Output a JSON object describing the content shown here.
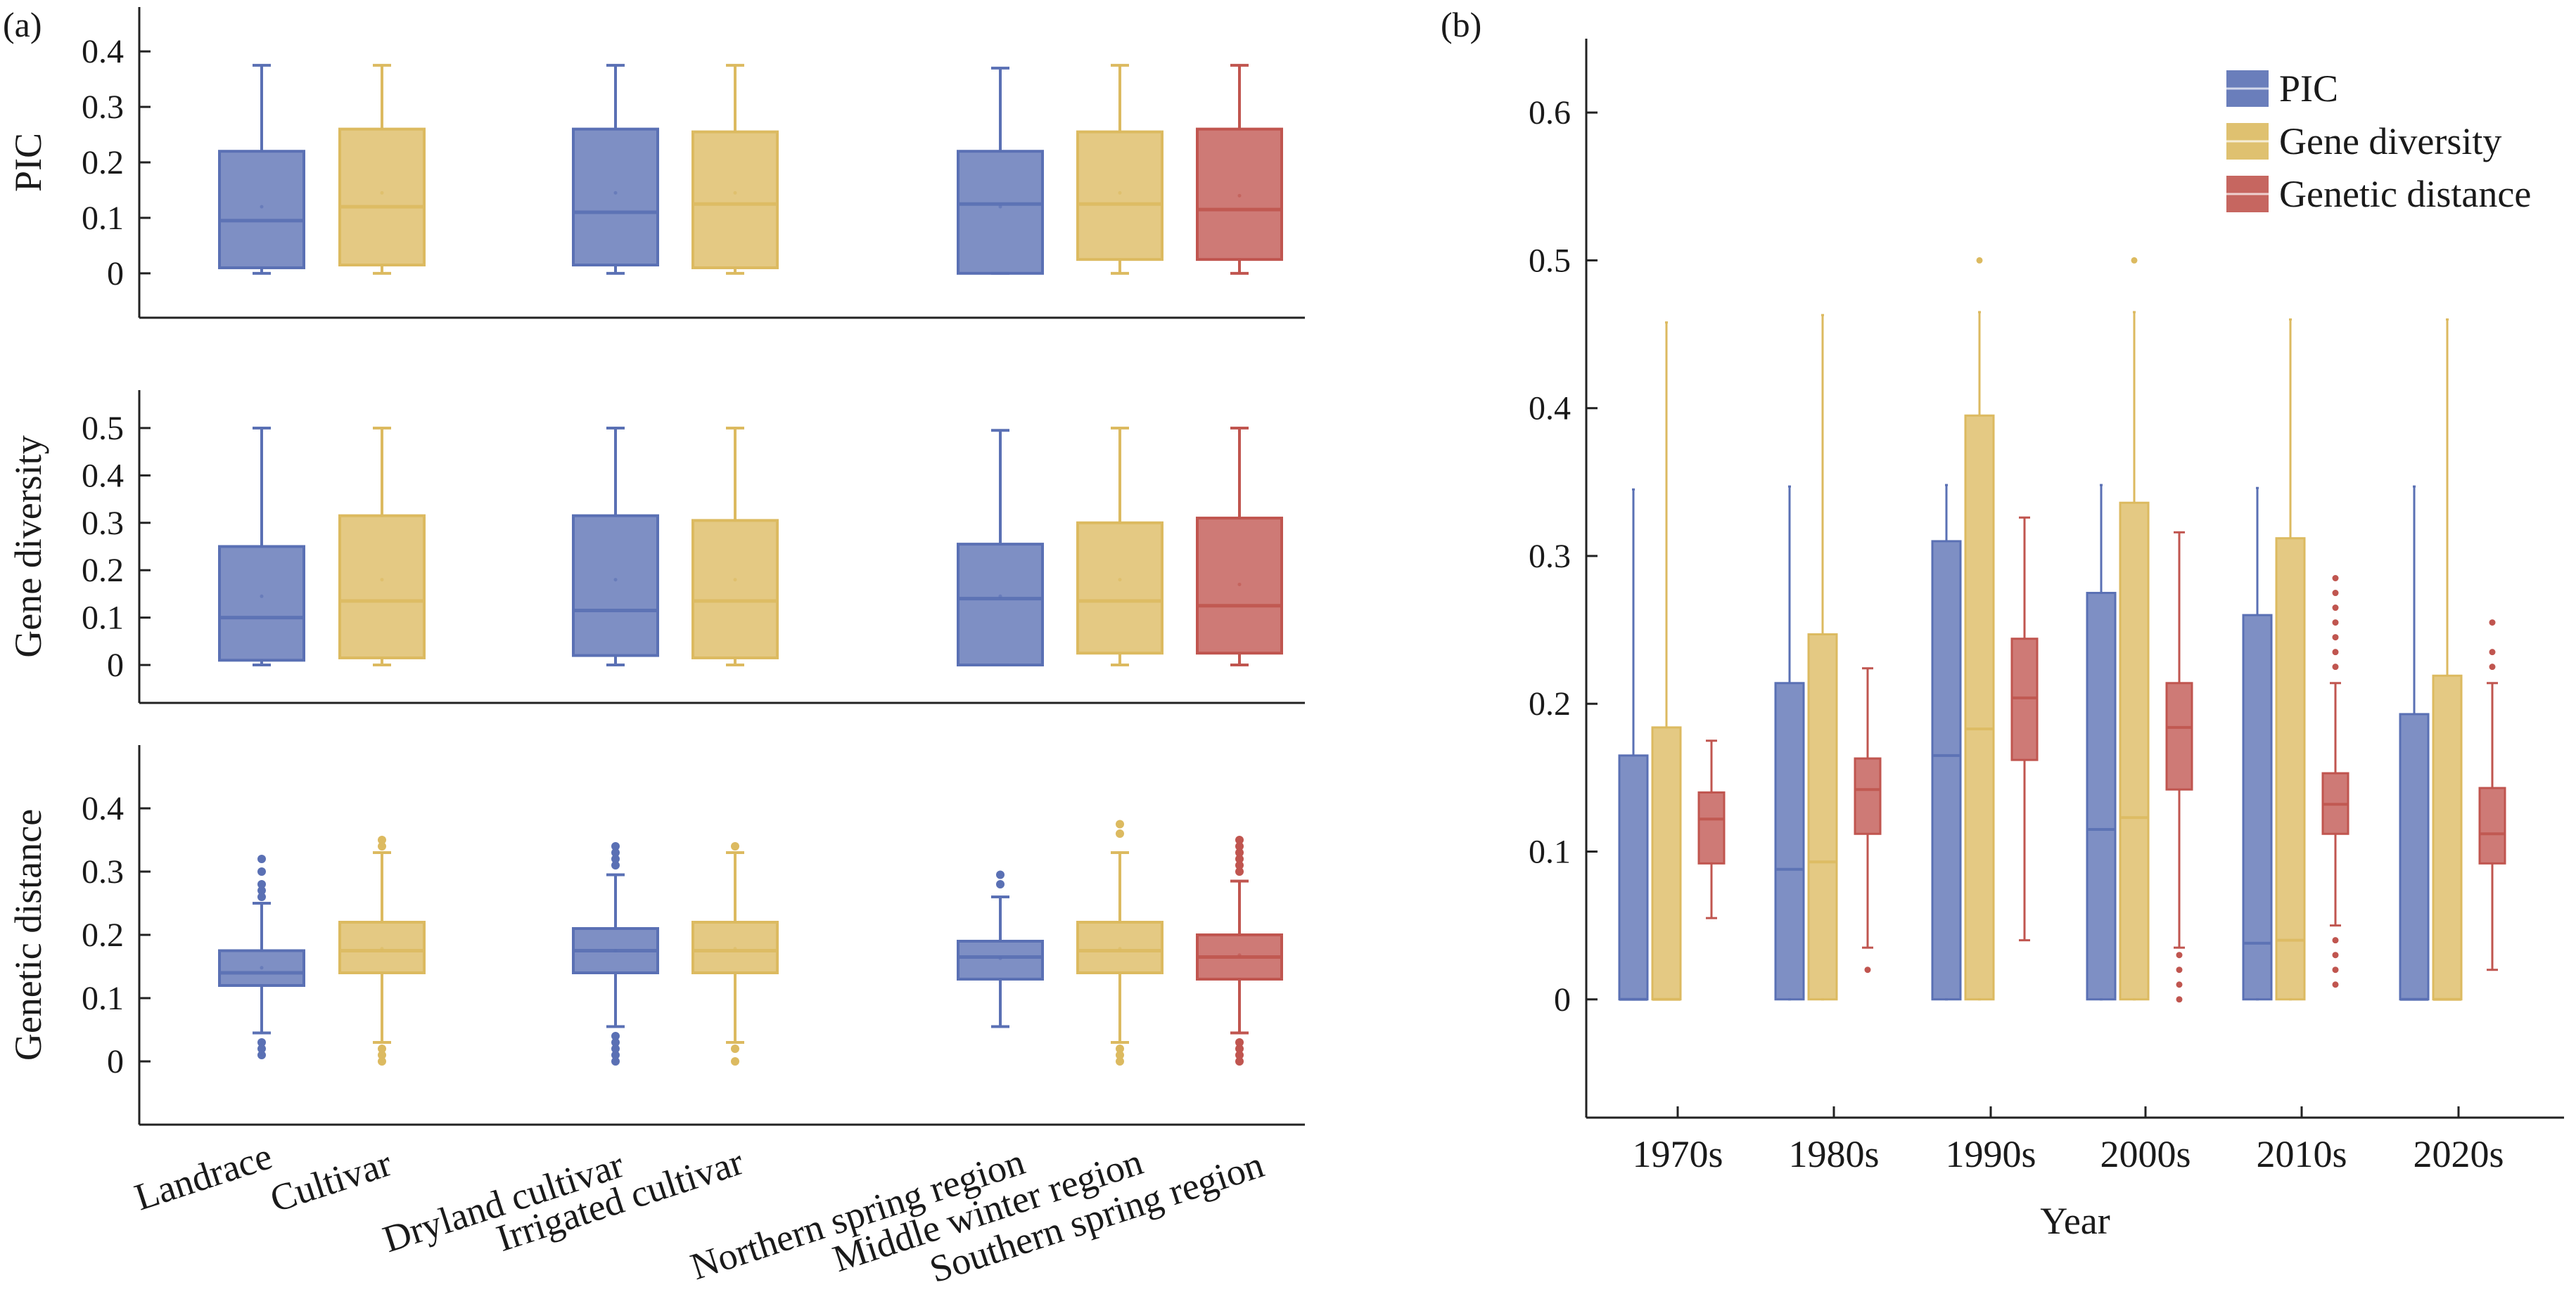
{
  "colors": {
    "PIC": "#5a70b4",
    "Gene diversity": "#dcba60",
    "Genetic distance": "#c0554f"
  },
  "chart_data": [
    {
      "type": "box",
      "panel_label": "(a)",
      "ylabel": "PIC",
      "ylim": [
        -0.08,
        0.48
      ],
      "yticks": [
        0,
        0.1,
        0.2,
        0.3,
        0.4
      ],
      "ytick_labels": [
        "0",
        "0.1",
        "0.2",
        "0.3",
        "0.4"
      ],
      "categories": [
        "Landrace",
        "Cultivar",
        "Dryland cultivar",
        "Irrigated cultivar",
        "Northern spring region",
        "Middle winter region",
        "Southern spring region"
      ],
      "boxes": [
        {
          "category": "Landrace",
          "series": "PIC",
          "whislo": 0.0,
          "q1": 0.01,
          "med": 0.095,
          "q3": 0.22,
          "whishi": 0.375,
          "mean": 0.12,
          "fliers": []
        },
        {
          "category": "Cultivar",
          "series": "Gene diversity",
          "whislo": 0.0,
          "q1": 0.015,
          "med": 0.12,
          "q3": 0.26,
          "whishi": 0.375,
          "mean": 0.145,
          "fliers": []
        },
        {
          "category": "Dryland cultivar",
          "series": "PIC",
          "whislo": 0.0,
          "q1": 0.015,
          "med": 0.11,
          "q3": 0.26,
          "whishi": 0.375,
          "mean": 0.145,
          "fliers": []
        },
        {
          "category": "Irrigated cultivar",
          "series": "Gene diversity",
          "whislo": 0.0,
          "q1": 0.01,
          "med": 0.125,
          "q3": 0.255,
          "whishi": 0.375,
          "mean": 0.145,
          "fliers": []
        },
        {
          "category": "Northern spring region",
          "series": "PIC",
          "whislo": 0.0,
          "q1": 0.0,
          "med": 0.125,
          "q3": 0.22,
          "whishi": 0.37,
          "mean": 0.12,
          "fliers": []
        },
        {
          "category": "Middle winter region",
          "series": "Gene diversity",
          "whislo": 0.0,
          "q1": 0.025,
          "med": 0.125,
          "q3": 0.255,
          "whishi": 0.375,
          "mean": 0.145,
          "fliers": []
        },
        {
          "category": "Southern spring region",
          "series": "Genetic distance",
          "whislo": 0.0,
          "q1": 0.025,
          "med": 0.115,
          "q3": 0.26,
          "whishi": 0.375,
          "mean": 0.14,
          "fliers": []
        }
      ]
    },
    {
      "type": "box",
      "ylabel": "Gene diversity",
      "ylim": [
        -0.08,
        0.58
      ],
      "yticks": [
        0,
        0.1,
        0.2,
        0.3,
        0.4,
        0.5
      ],
      "ytick_labels": [
        "0",
        "0.1",
        "0.2",
        "0.3",
        "0.4",
        "0.5"
      ],
      "categories": [
        "Landrace",
        "Cultivar",
        "Dryland cultivar",
        "Irrigated cultivar",
        "Northern spring region",
        "Middle winter region",
        "Southern spring region"
      ],
      "boxes": [
        {
          "category": "Landrace",
          "series": "PIC",
          "whislo": 0.0,
          "q1": 0.01,
          "med": 0.1,
          "q3": 0.25,
          "whishi": 0.5,
          "mean": 0.145,
          "fliers": []
        },
        {
          "category": "Cultivar",
          "series": "Gene diversity",
          "whislo": 0.0,
          "q1": 0.015,
          "med": 0.135,
          "q3": 0.315,
          "whishi": 0.5,
          "mean": 0.18,
          "fliers": []
        },
        {
          "category": "Dryland cultivar",
          "series": "PIC",
          "whislo": 0.0,
          "q1": 0.02,
          "med": 0.115,
          "q3": 0.315,
          "whishi": 0.5,
          "mean": 0.18,
          "fliers": []
        },
        {
          "category": "Irrigated cultivar",
          "series": "Gene diversity",
          "whislo": 0.0,
          "q1": 0.015,
          "med": 0.135,
          "q3": 0.305,
          "whishi": 0.5,
          "mean": 0.18,
          "fliers": []
        },
        {
          "category": "Northern spring region",
          "series": "PIC",
          "whislo": 0.0,
          "q1": 0.0,
          "med": 0.14,
          "q3": 0.255,
          "whishi": 0.495,
          "mean": 0.145,
          "fliers": []
        },
        {
          "category": "Middle winter region",
          "series": "Gene diversity",
          "whislo": 0.0,
          "q1": 0.025,
          "med": 0.135,
          "q3": 0.3,
          "whishi": 0.5,
          "mean": 0.18,
          "fliers": []
        },
        {
          "category": "Southern spring region",
          "series": "Genetic distance",
          "whislo": 0.0,
          "q1": 0.025,
          "med": 0.125,
          "q3": 0.31,
          "whishi": 0.5,
          "mean": 0.17,
          "fliers": []
        }
      ]
    },
    {
      "type": "box",
      "ylabel": "Genetic distance",
      "ylim": [
        -0.1,
        0.5
      ],
      "yticks": [
        0,
        0.1,
        0.2,
        0.3,
        0.4
      ],
      "ytick_labels": [
        "0",
        "0.1",
        "0.2",
        "0.3",
        "0.4"
      ],
      "categories": [
        "Landrace",
        "Cultivar",
        "Dryland cultivar",
        "Irrigated cultivar",
        "Northern spring region",
        "Middle winter region",
        "Southern spring region"
      ],
      "boxes": [
        {
          "category": "Landrace",
          "series": "PIC",
          "whislo": 0.045,
          "q1": 0.12,
          "med": 0.14,
          "q3": 0.175,
          "whishi": 0.25,
          "mean": 0.148,
          "fliers": [
            0.01,
            0.02,
            0.03,
            0.26,
            0.27,
            0.28,
            0.3,
            0.32
          ]
        },
        {
          "category": "Cultivar",
          "series": "Gene diversity",
          "whislo": 0.03,
          "q1": 0.14,
          "med": 0.175,
          "q3": 0.22,
          "whishi": 0.33,
          "mean": 0.178,
          "fliers": [
            0.0,
            0.01,
            0.02,
            0.34,
            0.35
          ]
        },
        {
          "category": "Dryland cultivar",
          "series": "PIC",
          "whislo": 0.055,
          "q1": 0.14,
          "med": 0.175,
          "q3": 0.21,
          "whishi": 0.295,
          "mean": 0.175,
          "fliers": [
            0.0,
            0.01,
            0.02,
            0.03,
            0.04,
            0.31,
            0.32,
            0.33,
            0.34
          ]
        },
        {
          "category": "Irrigated cultivar",
          "series": "Gene diversity",
          "whislo": 0.03,
          "q1": 0.14,
          "med": 0.175,
          "q3": 0.22,
          "whishi": 0.33,
          "mean": 0.178,
          "fliers": [
            0.0,
            0.02,
            0.34
          ]
        },
        {
          "category": "Northern spring region",
          "series": "PIC",
          "whislo": 0.055,
          "q1": 0.13,
          "med": 0.165,
          "q3": 0.19,
          "whishi": 0.26,
          "mean": 0.163,
          "fliers": [
            0.28,
            0.295
          ]
        },
        {
          "category": "Middle winter region",
          "series": "Gene diversity",
          "whislo": 0.03,
          "q1": 0.14,
          "med": 0.175,
          "q3": 0.22,
          "whishi": 0.33,
          "mean": 0.178,
          "fliers": [
            0.0,
            0.01,
            0.02,
            0.36,
            0.375
          ]
        },
        {
          "category": "Southern spring region",
          "series": "Genetic distance",
          "whislo": 0.045,
          "q1": 0.13,
          "med": 0.165,
          "q3": 0.2,
          "whishi": 0.285,
          "mean": 0.168,
          "fliers": [
            0.0,
            0.01,
            0.02,
            0.03,
            0.3,
            0.31,
            0.32,
            0.33,
            0.34,
            0.35
          ]
        }
      ]
    },
    {
      "type": "box",
      "panel_label": "(b)",
      "xlabel": "Year",
      "ylabel": "",
      "ylim": [
        -0.08,
        0.65
      ],
      "yticks": [
        0,
        0.1,
        0.2,
        0.3,
        0.4,
        0.5,
        0.6
      ],
      "ytick_labels": [
        "0",
        "0.1",
        "0.2",
        "0.3",
        "0.4",
        "0.5",
        "0.6"
      ],
      "categories": [
        "1970s",
        "1980s",
        "1990s",
        "2000s",
        "2010s",
        "2020s"
      ],
      "series": [
        {
          "name": "PIC",
          "color": "#5a70b4",
          "boxes": [
            {
              "whislo": 0.0,
              "q1": 0.0,
              "med": 0.0,
              "q3": 0.165,
              "whishi": 0.345,
              "fliers": []
            },
            {
              "whislo": 0.0,
              "q1": 0.0,
              "med": 0.088,
              "q3": 0.214,
              "whishi": 0.347,
              "fliers": []
            },
            {
              "whislo": 0.0,
              "q1": 0.0,
              "med": 0.165,
              "q3": 0.31,
              "whishi": 0.348,
              "fliers": []
            },
            {
              "whislo": 0.0,
              "q1": 0.0,
              "med": 0.115,
              "q3": 0.275,
              "whishi": 0.348,
              "fliers": []
            },
            {
              "whislo": 0.0,
              "q1": 0.0,
              "med": 0.038,
              "q3": 0.26,
              "whishi": 0.346,
              "fliers": []
            },
            {
              "whislo": 0.0,
              "q1": 0.0,
              "med": 0.0,
              "q3": 0.193,
              "whishi": 0.347,
              "fliers": []
            }
          ]
        },
        {
          "name": "Gene diversity",
          "color": "#dcba60",
          "boxes": [
            {
              "whislo": 0.0,
              "q1": 0.0,
              "med": 0.0,
              "q3": 0.184,
              "whishi": 0.458,
              "fliers": []
            },
            {
              "whislo": 0.0,
              "q1": 0.0,
              "med": 0.093,
              "q3": 0.247,
              "whishi": 0.463,
              "fliers": []
            },
            {
              "whislo": 0.0,
              "q1": 0.0,
              "med": 0.183,
              "q3": 0.395,
              "whishi": 0.465,
              "fliers": [
                0.5
              ]
            },
            {
              "whislo": 0.0,
              "q1": 0.0,
              "med": 0.123,
              "q3": 0.336,
              "whishi": 0.465,
              "fliers": [
                0.5
              ]
            },
            {
              "whislo": 0.0,
              "q1": 0.0,
              "med": 0.04,
              "q3": 0.312,
              "whishi": 0.46,
              "fliers": []
            },
            {
              "whislo": 0.0,
              "q1": 0.0,
              "med": 0.0,
              "q3": 0.219,
              "whishi": 0.46,
              "fliers": []
            }
          ]
        },
        {
          "name": "Genetic distance",
          "color": "#c0554f",
          "boxes": [
            {
              "whislo": 0.055,
              "q1": 0.092,
              "med": 0.122,
              "q3": 0.14,
              "whishi": 0.175,
              "fliers": []
            },
            {
              "whislo": 0.035,
              "q1": 0.112,
              "med": 0.142,
              "q3": 0.163,
              "whishi": 0.224,
              "fliers": [
                0.02
              ]
            },
            {
              "whislo": 0.04,
              "q1": 0.162,
              "med": 0.204,
              "q3": 0.244,
              "whishi": 0.326,
              "fliers": []
            },
            {
              "whislo": 0.035,
              "q1": 0.142,
              "med": 0.184,
              "q3": 0.214,
              "whishi": 0.316,
              "fliers": [
                0.0,
                0.01,
                0.02,
                0.03
              ]
            },
            {
              "whislo": 0.05,
              "q1": 0.112,
              "med": 0.132,
              "q3": 0.153,
              "whishi": 0.214,
              "fliers": [
                0.01,
                0.02,
                0.03,
                0.04,
                0.225,
                0.235,
                0.245,
                0.255,
                0.265,
                0.275,
                0.285
              ]
            },
            {
              "whislo": 0.02,
              "q1": 0.092,
              "med": 0.112,
              "q3": 0.143,
              "whishi": 0.214,
              "fliers": [
                0.225,
                0.235,
                0.255
              ]
            }
          ]
        }
      ],
      "legend": {
        "entries": [
          "PIC",
          "Gene diversity",
          "Genetic distance"
        ],
        "placement": "top-right"
      }
    }
  ]
}
